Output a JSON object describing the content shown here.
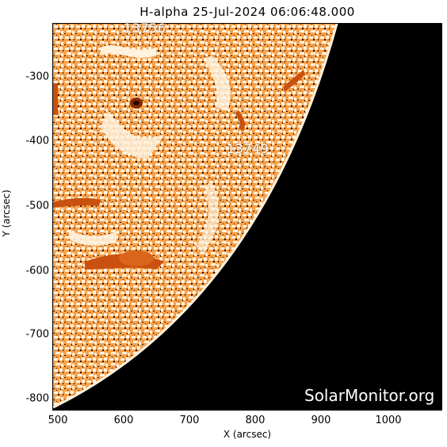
{
  "title": "H-alpha 25-Jul-2024 06:06:48.000",
  "x_axis": {
    "label": "X (arcsec)",
    "ticks": [
      "500",
      "600",
      "700",
      "800",
      "900",
      "1000"
    ]
  },
  "y_axis": {
    "label": "Y (arcsec)",
    "ticks": [
      "-300",
      "-400",
      "-500",
      "-600",
      "-700",
      "-800"
    ]
  },
  "regions": [
    {
      "label": "13756"
    },
    {
      "label": "13749"
    }
  ],
  "watermark": "SolarMonitor.org",
  "colors": {
    "space": "#000000",
    "disk_light": "#fff2de",
    "disk_mid": "#f4801c",
    "disk_dark": "#b8460a"
  }
}
